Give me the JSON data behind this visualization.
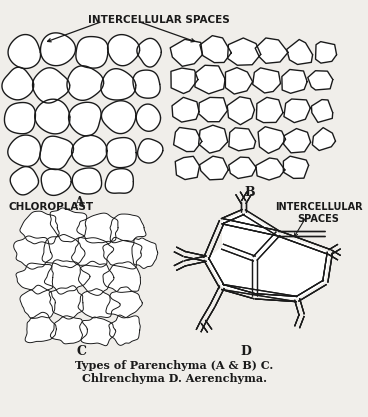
{
  "bg_color": "#f0eeea",
  "line_color": "#1a1a1a",
  "title_text": "Types of Parenchyma (A & B) C.\nChlrenchyma D. Aerenchyma.",
  "label_A": "A",
  "label_B": "B",
  "label_C": "C",
  "label_D": "D",
  "label_chloroplast": "CHLOROPLAST",
  "label_intercellular1": "INTERCELLULAR SPACES",
  "label_intercellular2": "INTERCELLULAR\nSPACES",
  "fig_width": 3.68,
  "fig_height": 4.17,
  "dpi": 100
}
